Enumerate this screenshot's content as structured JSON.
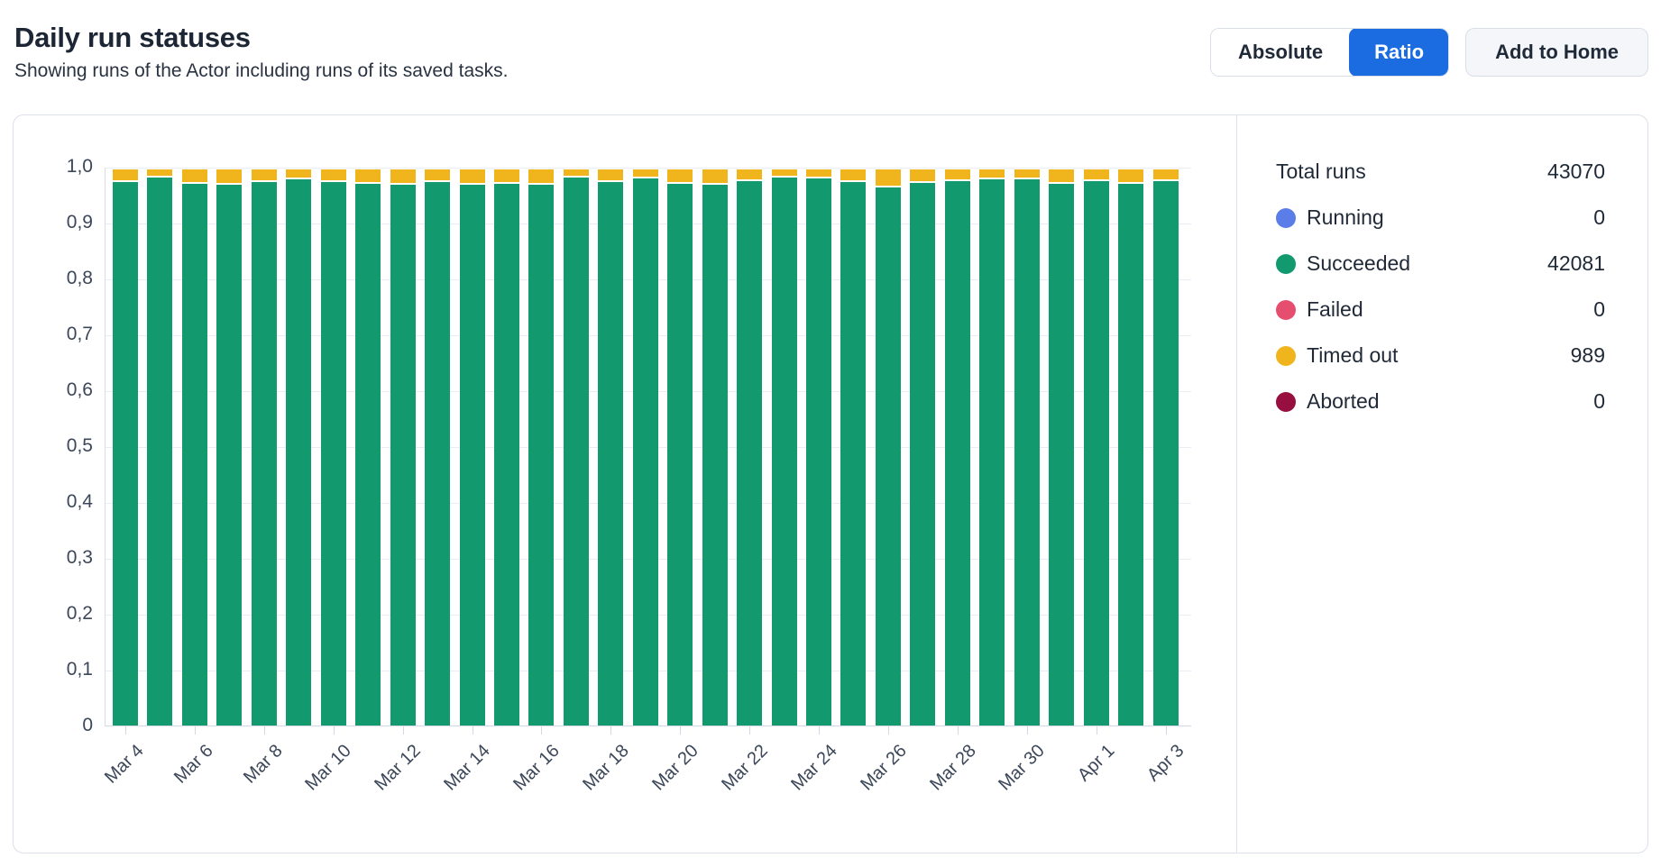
{
  "header": {
    "title": "Daily run statuses",
    "subtitle": "Showing runs of the Actor including runs of its saved tasks.",
    "buttons": {
      "absolute": "Absolute",
      "ratio": "Ratio",
      "add_to_home": "Add to Home"
    },
    "active_toggle": "Ratio",
    "accent_color": "#1a6ce0"
  },
  "legend": {
    "total_label": "Total runs",
    "total_value": "43070",
    "items": [
      {
        "label": "Running",
        "value": "0",
        "color": "#5b7de8"
      },
      {
        "label": "Succeeded",
        "value": "42081",
        "color": "#13996e"
      },
      {
        "label": "Failed",
        "value": "0",
        "color": "#e64e70"
      },
      {
        "label": "Timed out",
        "value": "989",
        "color": "#f0b41d"
      },
      {
        "label": "Aborted",
        "value": "0",
        "color": "#970f3e"
      }
    ]
  },
  "chart_data": {
    "type": "bar",
    "stacked": true,
    "mode": "ratio",
    "title": "Daily run statuses",
    "x": [
      "Mar 4",
      "Mar 5",
      "Mar 6",
      "Mar 7",
      "Mar 8",
      "Mar 9",
      "Mar 10",
      "Mar 11",
      "Mar 12",
      "Mar 13",
      "Mar 14",
      "Mar 15",
      "Mar 16",
      "Mar 17",
      "Mar 18",
      "Mar 19",
      "Mar 20",
      "Mar 21",
      "Mar 22",
      "Mar 23",
      "Mar 24",
      "Mar 25",
      "Mar 26",
      "Mar 27",
      "Mar 28",
      "Mar 29",
      "Mar 30",
      "Mar 31",
      "Apr 1",
      "Apr 2",
      "Apr 3"
    ],
    "series": [
      {
        "name": "Succeeded",
        "color": "#13996e",
        "values": [
          0.972,
          0.981,
          0.97,
          0.968,
          0.972,
          0.978,
          0.973,
          0.97,
          0.968,
          0.972,
          0.967,
          0.969,
          0.968,
          0.98,
          0.972,
          0.979,
          0.97,
          0.968,
          0.975,
          0.98,
          0.979,
          0.972,
          0.963,
          0.971,
          0.974,
          0.977,
          0.977,
          0.97,
          0.975,
          0.97,
          0.975
        ]
      },
      {
        "name": "Timed out",
        "color": "#f0b41d",
        "values": [
          0.028,
          0.019,
          0.03,
          0.032,
          0.028,
          0.022,
          0.027,
          0.03,
          0.032,
          0.028,
          0.033,
          0.031,
          0.032,
          0.02,
          0.028,
          0.021,
          0.03,
          0.032,
          0.025,
          0.02,
          0.021,
          0.028,
          0.037,
          0.029,
          0.026,
          0.023,
          0.023,
          0.03,
          0.025,
          0.03,
          0.025
        ]
      }
    ],
    "ylim": [
      0,
      1
    ],
    "ytick_labels": [
      "1,0",
      "0,9",
      "0,8",
      "0,7",
      "0,6",
      "0,5",
      "0,4",
      "0,3",
      "0,2",
      "0,1",
      "0"
    ],
    "xtick_label_indices": [
      0,
      2,
      4,
      6,
      8,
      10,
      12,
      14,
      16,
      18,
      20,
      22,
      24,
      26,
      28,
      30
    ],
    "x_label_rotation": -45,
    "grid": true,
    "legend_position": "right"
  }
}
